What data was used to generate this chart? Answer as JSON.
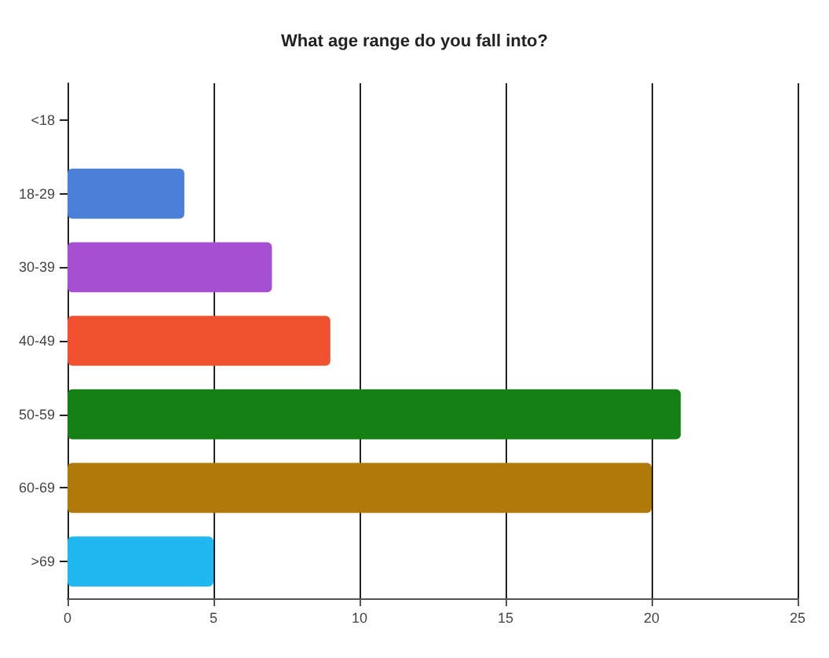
{
  "chart_data": {
    "type": "bar",
    "orientation": "horizontal",
    "title": "What age range do you fall into?",
    "categories": [
      "<18",
      "18-29",
      "30-39",
      "40-49",
      "50-59",
      "60-69",
      ">69"
    ],
    "values": [
      0,
      4,
      7,
      9,
      21,
      20,
      5
    ],
    "colors": [
      "#cccccc",
      "#4a7fd8",
      "#a64fd0",
      "#f0502f",
      "#158015",
      "#b07a0a",
      "#20b8f0"
    ],
    "xlim": [
      0,
      25
    ],
    "xticks": [
      0,
      5,
      10,
      15,
      20,
      25
    ],
    "grid": "x"
  }
}
